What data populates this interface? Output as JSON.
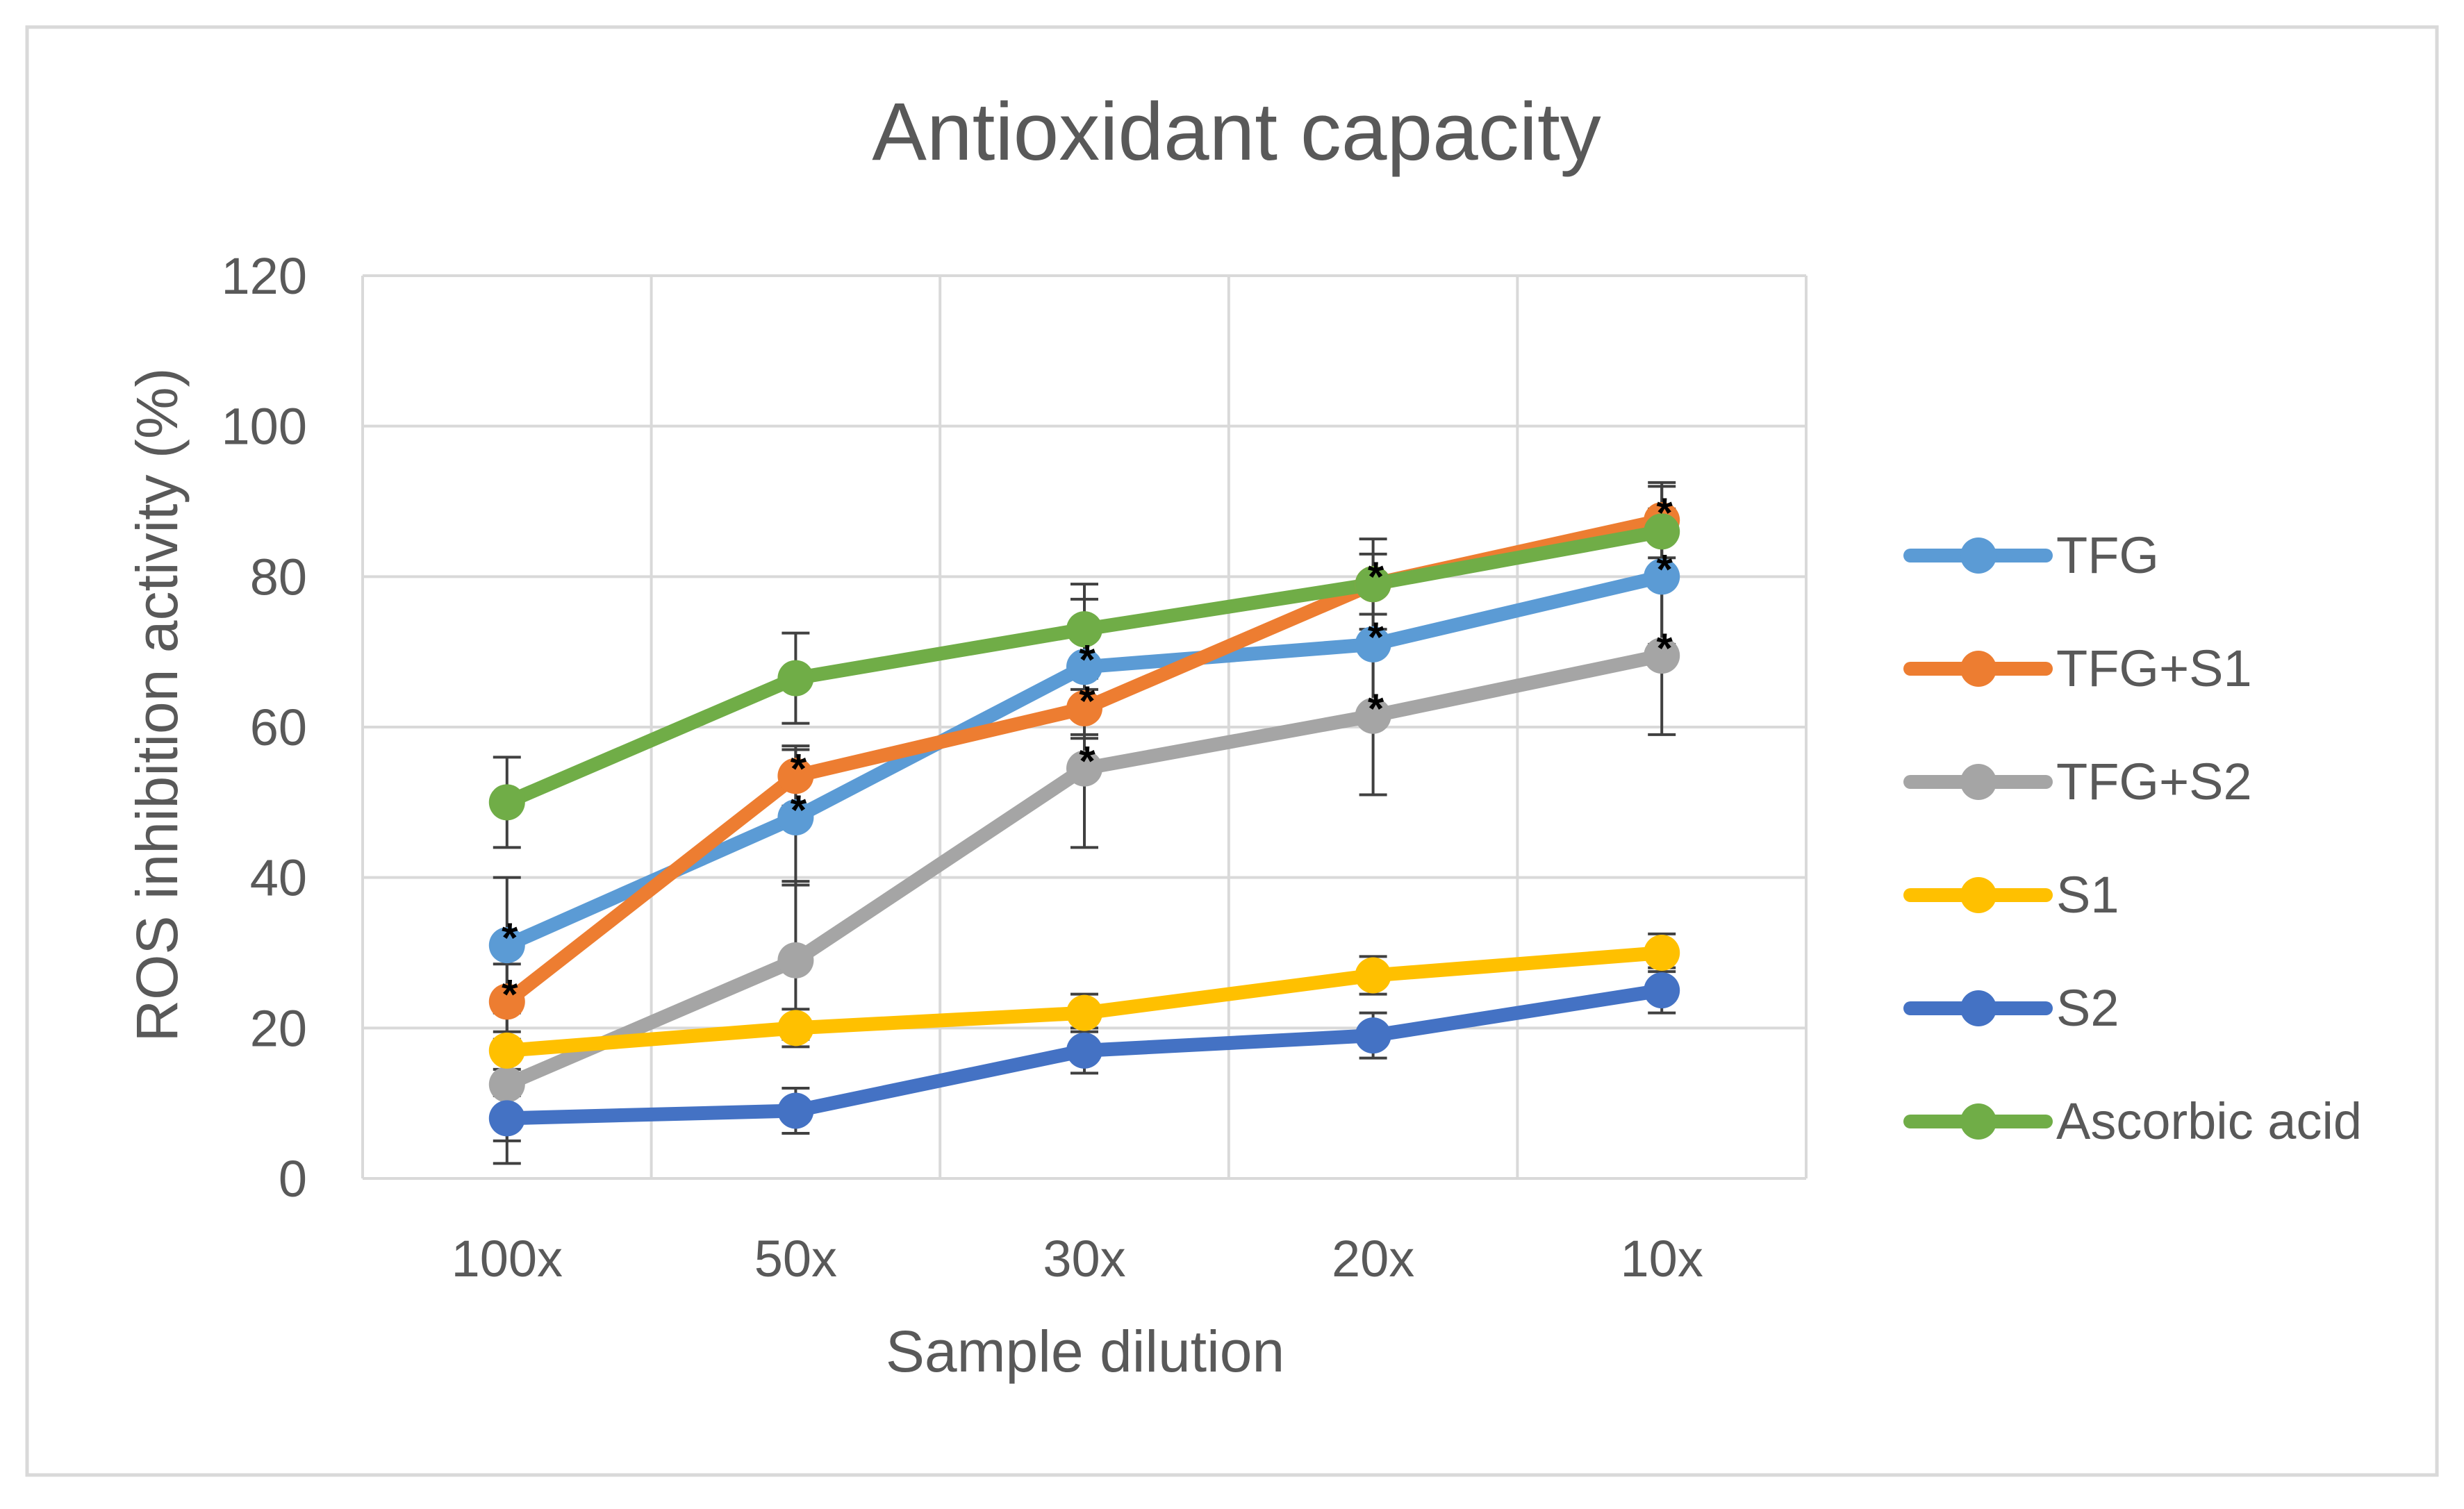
{
  "chart_data": {
    "type": "line",
    "title": "Antioxidant capacity",
    "xlabel": "Sample dilution",
    "ylabel": "ROS inhibition activity (%)",
    "categories": [
      "100x",
      "50x",
      "30x",
      "20x",
      "10x"
    ],
    "ylim": [
      0,
      120
    ],
    "yticks": [
      "0",
      "20",
      "40",
      "60",
      "80",
      "100",
      "120"
    ],
    "grid": true,
    "legend_position": "right",
    "annotation_symbol": "*",
    "series": [
      {
        "name": "TFG",
        "color": "#5B9BD5",
        "values": [
          31,
          48,
          68,
          71,
          80
        ],
        "errors": [
          9,
          9,
          9,
          9,
          9
        ],
        "significance": [
          true,
          true,
          true,
          true,
          true
        ]
      },
      {
        "name": "TFG+S1",
        "color": "#ED7D31",
        "values": [
          23.5,
          53.5,
          62.5,
          79,
          87.5
        ],
        "errors": [
          5,
          4,
          4,
          4,
          5
        ],
        "significance": [
          true,
          true,
          true,
          true,
          true
        ]
      },
      {
        "name": "TFG+S2",
        "color": "#A5A5A5",
        "values": [
          12.5,
          29,
          54.5,
          61.5,
          69.5
        ],
        "errors": [
          10.5,
          10.5,
          10.5,
          10.5,
          10.5
        ],
        "significance": [
          false,
          false,
          true,
          true,
          true
        ]
      },
      {
        "name": "S1",
        "color": "#FFC000",
        "values": [
          17,
          20,
          22,
          27,
          30
        ],
        "errors": [
          2.5,
          2.5,
          2.5,
          2.5,
          2.5
        ],
        "significance": [
          false,
          false,
          false,
          false,
          false
        ]
      },
      {
        "name": "S2",
        "color": "#4472C4",
        "values": [
          8,
          9,
          17,
          19,
          25
        ],
        "errors": [
          3,
          3,
          3,
          3,
          3
        ],
        "significance": [
          false,
          false,
          false,
          false,
          false
        ]
      },
      {
        "name": "Ascorbic acid",
        "color": "#70AD47",
        "values": [
          50,
          66.5,
          73,
          79,
          86
        ],
        "errors": [
          6,
          6,
          6,
          6,
          6
        ],
        "significance": [
          false,
          false,
          false,
          false,
          false
        ]
      }
    ]
  }
}
